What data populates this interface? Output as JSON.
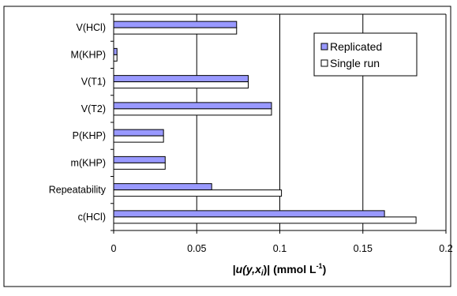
{
  "chart_data": {
    "type": "bar",
    "orientation": "horizontal",
    "categories": [
      "V(HCl)",
      "M(KHP)",
      "V(T1)",
      "V(T2)",
      "P(KHP)",
      "m(KHP)",
      "Repeatability",
      "c(HCl)"
    ],
    "series": [
      {
        "name": "Replicated",
        "values": [
          0.074,
          0.002,
          0.081,
          0.095,
          0.03,
          0.031,
          0.059,
          0.163
        ],
        "color": "#9999ff"
      },
      {
        "name": "Single run",
        "values": [
          0.074,
          0.002,
          0.081,
          0.095,
          0.03,
          0.031,
          0.101,
          0.182
        ],
        "color": "#ffffff"
      }
    ],
    "xlabel": {
      "prefix": "|",
      "u": "u",
      "open": "(y,",
      "x": "x",
      "sub": "i",
      "close": ")| (mmol L",
      "sup": "-1",
      "end": ")"
    },
    "xlim": [
      0,
      0.2
    ],
    "xticks": [
      "0",
      "0.05",
      "0.1",
      "0.15",
      "0.2"
    ],
    "xtick_values": [
      0,
      0.05,
      0.1,
      0.15,
      0.2
    ],
    "grid": "vertical",
    "legend_position": "top-right"
  }
}
